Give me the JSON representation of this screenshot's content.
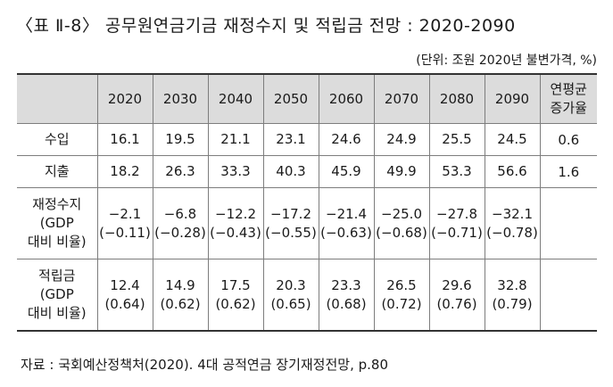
{
  "title": "〈표 Ⅱ-8〉 공무원연금기금 재정수지 및 적립금 전망 : 2020-2090",
  "unit": "(단위: 조원 2020년 불변가격, %)",
  "table": {
    "years": [
      "2020",
      "2030",
      "2040",
      "2050",
      "2060",
      "2070",
      "2080",
      "2090"
    ],
    "change_header": [
      "연평균",
      "증가율"
    ],
    "rows": [
      {
        "label": [
          "수입"
        ],
        "values": [
          "16.1",
          "19.5",
          "21.1",
          "23.1",
          "24.6",
          "24.9",
          "25.5",
          "24.5"
        ],
        "ratios": [],
        "change": "0.6"
      },
      {
        "label": [
          "지출"
        ],
        "values": [
          "18.2",
          "26.3",
          "33.3",
          "40.3",
          "45.9",
          "49.9",
          "53.3",
          "56.6"
        ],
        "ratios": [],
        "change": "1.6"
      },
      {
        "label": [
          "재정수지",
          "(GDP",
          "대비 비율)"
        ],
        "values": [
          "−2.1",
          "−6.8",
          "−12.2",
          "−17.2",
          "−21.4",
          "−25.0",
          "−27.8",
          "−32.1"
        ],
        "ratios": [
          "(−0.11)",
          "(−0.28)",
          "(−0.43)",
          "(−0.55)",
          "(−0.63)",
          "(−0.68)",
          "(−0.71)",
          "(−0.78)"
        ],
        "change": ""
      },
      {
        "label": [
          "적립금",
          "(GDP",
          "대비 비율)"
        ],
        "values": [
          "12.4",
          "14.9",
          "17.5",
          "20.3",
          "23.3",
          "26.5",
          "29.6",
          "32.8"
        ],
        "ratios": [
          "(0.64)",
          "(0.62)",
          "(0.62)",
          "(0.65)",
          "(0.68)",
          "(0.72)",
          "(0.76)",
          "(0.79)"
        ],
        "change": ""
      }
    ]
  },
  "source": "자료 : 국회예산정책처(2020). 4대 공적연금 장기재정전망, p.80"
}
